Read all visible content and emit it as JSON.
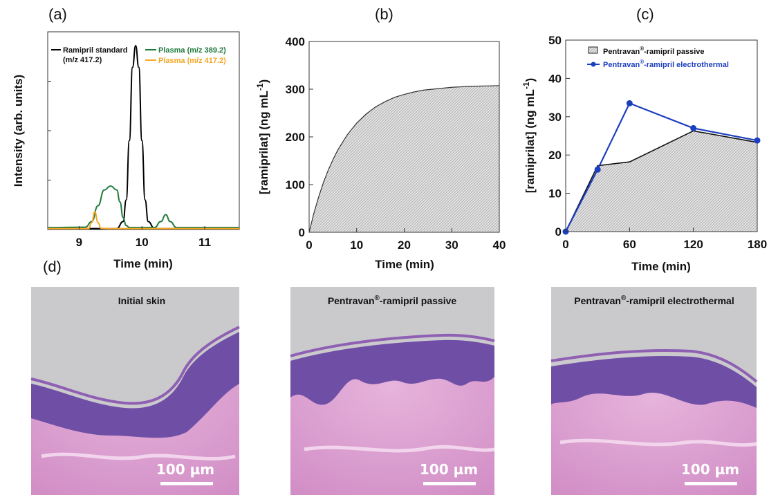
{
  "panel_labels": {
    "a": "(a)",
    "b": "(b)",
    "c": "(c)",
    "d": "(d)"
  },
  "chart_data": [
    {
      "type": "line",
      "panel": "(a)",
      "xlabel": "Time (min)",
      "ylabel": "Intensity (arb. units)",
      "xlim": [
        8.5,
        11.55
      ],
      "ylim": [
        0,
        1
      ],
      "x_ticks": [
        9,
        10,
        11
      ],
      "x_tick_labels": [
        "9",
        "10",
        "11"
      ],
      "y_tick_labels_shown": false,
      "legend": [
        {
          "label_line1": "Ramipril standard",
          "label_line2": "(m/z 417.2)",
          "color": "#000000"
        },
        {
          "label_line1": "Plasma (m/z 389.2)",
          "label_line2": "",
          "color": "#1f7a3c"
        },
        {
          "label_line1": "Plasma (m/z 417.2)",
          "label_line2": "",
          "color": "#f5a623"
        }
      ],
      "series": [
        {
          "name": "Ramipril standard (m/z 417.2)",
          "color": "#000000",
          "x": [
            8.5,
            9.6,
            9.7,
            9.75,
            9.8,
            9.85,
            9.9,
            9.95,
            10.0,
            10.05,
            10.1,
            10.2,
            11.55
          ],
          "y": [
            0.005,
            0.005,
            0.04,
            0.15,
            0.45,
            0.82,
            0.93,
            0.82,
            0.45,
            0.15,
            0.04,
            0.005,
            0.005
          ]
        },
        {
          "name": "Plasma (m/z 389.2)",
          "color": "#1f7a3c",
          "x": [
            8.5,
            9.1,
            9.2,
            9.3,
            9.4,
            9.5,
            9.6,
            9.65,
            9.7,
            9.75,
            9.8,
            9.9,
            10.2,
            10.3,
            10.38,
            10.45,
            10.55,
            11.55
          ],
          "y": [
            0.01,
            0.012,
            0.04,
            0.12,
            0.2,
            0.22,
            0.2,
            0.14,
            0.06,
            0.02,
            0.01,
            0.01,
            0.01,
            0.04,
            0.075,
            0.04,
            0.01,
            0.01
          ]
        },
        {
          "name": "Plasma (m/z 417.2)",
          "color": "#f5a623",
          "x": [
            8.5,
            9.15,
            9.2,
            9.25,
            9.3,
            9.35,
            9.45,
            11.55
          ],
          "y": [
            0.005,
            0.005,
            0.035,
            0.09,
            0.035,
            0.006,
            0.005,
            0.005
          ]
        }
      ]
    },
    {
      "type": "area",
      "panel": "(b)",
      "xlabel": "Time (min)",
      "ylabel": "[ramiprilat] (ng mL",
      "ylabel_superscript": "-1",
      "ylabel_close": ")",
      "xlim": [
        0,
        40
      ],
      "ylim": [
        0,
        400
      ],
      "x_ticks": [
        0,
        10,
        20,
        30,
        40
      ],
      "y_ticks": [
        0,
        100,
        200,
        300,
        400
      ],
      "series": [
        {
          "name": "",
          "x": [
            0,
            1,
            2,
            3,
            4,
            5,
            6,
            8,
            10,
            12,
            14,
            16,
            18,
            20,
            22,
            24,
            26,
            28,
            30,
            32,
            34,
            36,
            38,
            40
          ],
          "y": [
            0,
            40,
            74,
            104,
            130,
            152,
            172,
            204,
            229,
            248,
            263,
            274,
            283,
            289,
            294,
            298,
            300,
            302,
            304,
            305,
            306,
            306.5,
            307,
            307.5
          ]
        }
      ]
    },
    {
      "type": "line",
      "panel": "(c)",
      "xlabel": "Time (min)",
      "ylabel": "[ramiprilat] (ng mL",
      "ylabel_superscript": "-1",
      "ylabel_close": ")",
      "xlim": [
        0,
        180
      ],
      "ylim": [
        0,
        50
      ],
      "x_ticks": [
        0,
        60,
        120,
        180
      ],
      "y_ticks": [
        0,
        10,
        20,
        30,
        40,
        50
      ],
      "legend": [
        {
          "label_pre": "Pentravan",
          "label_sup": "®",
          "label_post": "-ramipril passive",
          "color": "#111111"
        },
        {
          "label_pre": "Pentravan",
          "label_sup": "®",
          "label_post": "-ramipril electrothermal",
          "color": "#1c3fbf"
        }
      ],
      "series": [
        {
          "name": "Pentravan®-ramipril passive",
          "color": "#111111",
          "style": "area",
          "x": [
            0,
            30,
            60,
            120,
            180
          ],
          "y": [
            0,
            17.2,
            18.2,
            26.3,
            23.3
          ]
        },
        {
          "name": "Pentravan®-ramipril electrothermal",
          "color": "#1c3fbf",
          "style": "line-markers",
          "x": [
            0,
            30,
            60,
            120,
            180
          ],
          "y": [
            0,
            16.2,
            33.5,
            27.0,
            23.8
          ]
        }
      ]
    }
  ],
  "micrographs": [
    {
      "title": "Initial skin",
      "title_sup": "",
      "title_post": "",
      "scale_label": "100 µm",
      "show_scale": true
    },
    {
      "title": "Pentravan",
      "title_sup": "®",
      "title_post": "-ramipril passive",
      "scale_label": "100 µm",
      "show_scale": true
    },
    {
      "title": "Pentravan",
      "title_sup": "®",
      "title_post": "-ramipril electrothermal",
      "scale_label": "100 µm",
      "show_scale": true
    }
  ],
  "colors": {
    "stain_pink": "#d58fc8",
    "stain_purple": "#6f4ea6",
    "background_gray": "#c9c9cc"
  }
}
